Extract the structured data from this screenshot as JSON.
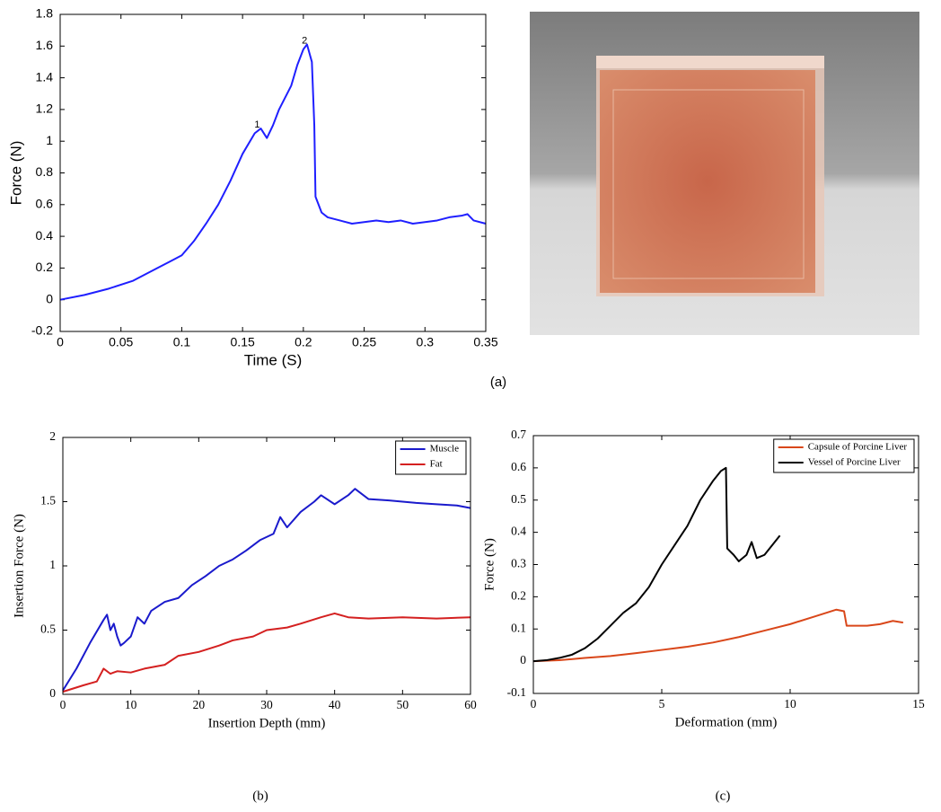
{
  "chart_data": [
    {
      "type": "line",
      "caption": "(a)",
      "xlabel": "Time (S)",
      "ylabel": "Force (N)",
      "xlim": [
        0,
        0.35
      ],
      "ylim": [
        -0.2,
        1.8
      ],
      "xticks": [
        0,
        0.05,
        0.1,
        0.15,
        0.2,
        0.25,
        0.3,
        0.35
      ],
      "yticks": [
        -0.2,
        0,
        0.2,
        0.4,
        0.6,
        0.8,
        1,
        1.2,
        1.4,
        1.6,
        1.8
      ],
      "grid": false,
      "annotations": [
        {
          "text": "1",
          "x": 0.162,
          "y": 1.08
        },
        {
          "text": "2",
          "x": 0.201,
          "y": 1.61
        }
      ],
      "series": [
        {
          "color": "#1f1fff",
          "x": [
            0,
            0.02,
            0.04,
            0.06,
            0.08,
            0.09,
            0.1,
            0.11,
            0.12,
            0.13,
            0.14,
            0.15,
            0.16,
            0.165,
            0.17,
            0.175,
            0.18,
            0.19,
            0.195,
            0.2,
            0.203,
            0.207,
            0.209,
            0.21,
            0.215,
            0.22,
            0.23,
            0.24,
            0.25,
            0.26,
            0.27,
            0.28,
            0.29,
            0.3,
            0.31,
            0.32,
            0.33,
            0.335,
            0.34,
            0.35
          ],
          "values": [
            0,
            0.03,
            0.07,
            0.12,
            0.2,
            0.24,
            0.28,
            0.37,
            0.48,
            0.6,
            0.75,
            0.92,
            1.05,
            1.08,
            1.02,
            1.1,
            1.2,
            1.35,
            1.48,
            1.58,
            1.61,
            1.5,
            1.1,
            0.65,
            0.55,
            0.52,
            0.5,
            0.48,
            0.49,
            0.5,
            0.49,
            0.5,
            0.48,
            0.49,
            0.5,
            0.52,
            0.53,
            0.54,
            0.5,
            0.48
          ]
        }
      ]
    },
    {
      "type": "line",
      "caption": "(b)",
      "xlabel": "Insertion Depth (mm)",
      "ylabel": "Insertion Force (N)",
      "xlim": [
        0,
        60
      ],
      "ylim": [
        0,
        2
      ],
      "xticks": [
        0,
        10,
        20,
        30,
        40,
        50,
        60
      ],
      "yticks": [
        0,
        0.5,
        1,
        1.5,
        2
      ],
      "grid": false,
      "legend": "upper right",
      "series": [
        {
          "name": "Muscle",
          "color": "#1a1acc",
          "x": [
            0,
            2,
            4,
            6,
            6.5,
            7,
            7.5,
            8,
            8.5,
            9,
            10,
            11,
            12,
            13,
            15,
            17,
            19,
            21,
            23,
            25,
            27,
            29,
            31,
            32,
            33,
            35,
            37,
            38,
            40,
            42,
            43,
            44,
            45,
            48,
            50,
            52,
            55,
            58,
            60
          ],
          "values": [
            0.03,
            0.2,
            0.4,
            0.58,
            0.62,
            0.5,
            0.55,
            0.45,
            0.38,
            0.4,
            0.45,
            0.6,
            0.55,
            0.65,
            0.72,
            0.75,
            0.85,
            0.92,
            1.0,
            1.05,
            1.12,
            1.2,
            1.25,
            1.38,
            1.3,
            1.42,
            1.5,
            1.55,
            1.48,
            1.55,
            1.6,
            1.56,
            1.52,
            1.51,
            1.5,
            1.49,
            1.48,
            1.47,
            1.45
          ]
        },
        {
          "name": "Fat",
          "color": "#d42020",
          "x": [
            0,
            3,
            5,
            6,
            7,
            8,
            10,
            12,
            15,
            17,
            20,
            23,
            25,
            28,
            30,
            33,
            35,
            38,
            40,
            42,
            45,
            50,
            55,
            60
          ],
          "values": [
            0.02,
            0.07,
            0.1,
            0.2,
            0.16,
            0.18,
            0.17,
            0.2,
            0.23,
            0.3,
            0.33,
            0.38,
            0.42,
            0.45,
            0.5,
            0.52,
            0.55,
            0.6,
            0.63,
            0.6,
            0.59,
            0.6,
            0.59,
            0.6
          ]
        }
      ]
    },
    {
      "type": "line",
      "caption": "(c)",
      "xlabel": "Deformation (mm)",
      "ylabel": "Force (N)",
      "xlim": [
        0,
        15
      ],
      "ylim": [
        -0.1,
        0.7
      ],
      "xticks": [
        0,
        5,
        10,
        15
      ],
      "yticks": [
        -0.1,
        0,
        0.1,
        0.2,
        0.3,
        0.4,
        0.5,
        0.6,
        0.7
      ],
      "grid": false,
      "legend": "upper right",
      "series": [
        {
          "name": "Capsule of Porcine Liver",
          "color": "#d9471a",
          "x": [
            0,
            1,
            2,
            3,
            4,
            5,
            6,
            7,
            8,
            9,
            10,
            11,
            11.8,
            12.1,
            12.2,
            12.5,
            13,
            13.5,
            14,
            14.4
          ],
          "values": [
            0,
            0.003,
            0.01,
            0.016,
            0.025,
            0.035,
            0.045,
            0.058,
            0.075,
            0.095,
            0.115,
            0.14,
            0.16,
            0.155,
            0.11,
            0.11,
            0.11,
            0.115,
            0.125,
            0.12
          ]
        },
        {
          "name": "Vessel of Porcine Liver",
          "color": "#000000",
          "x": [
            0,
            0.5,
            1,
            1.5,
            2,
            2.5,
            3,
            3.5,
            4,
            4.5,
            5,
            5.5,
            6,
            6.5,
            7,
            7.3,
            7.5,
            7.55,
            7.8,
            8,
            8.3,
            8.5,
            8.7,
            9,
            9.3,
            9.6
          ],
          "values": [
            0,
            0.003,
            0.01,
            0.02,
            0.04,
            0.07,
            0.11,
            0.15,
            0.18,
            0.23,
            0.3,
            0.36,
            0.42,
            0.5,
            0.56,
            0.59,
            0.6,
            0.35,
            0.33,
            0.31,
            0.33,
            0.37,
            0.32,
            0.33,
            0.36,
            0.39
          ]
        }
      ]
    }
  ]
}
